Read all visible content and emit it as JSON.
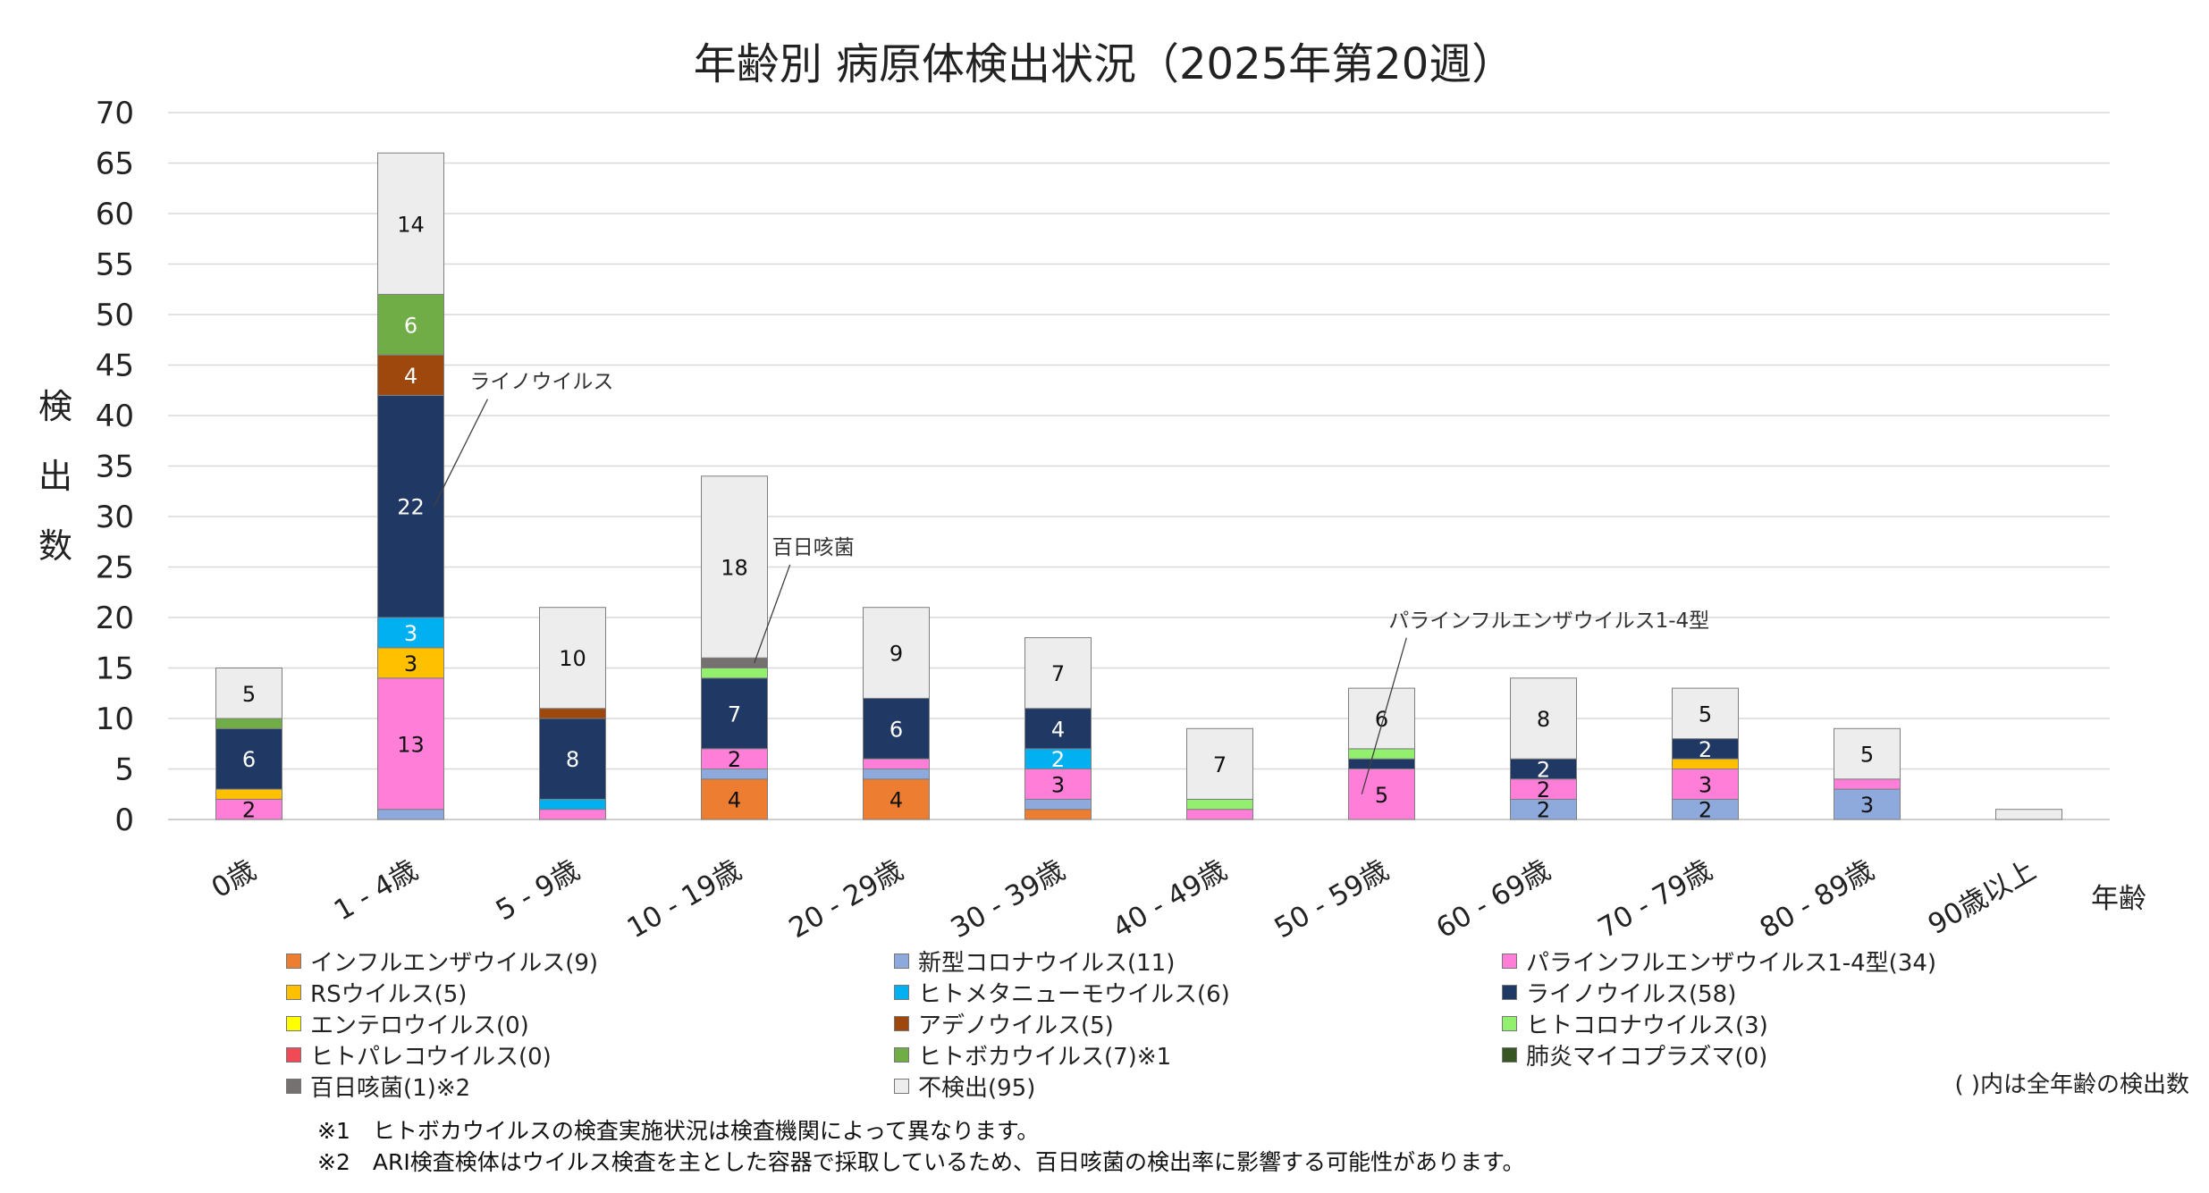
{
  "chart_data": {
    "type": "bar",
    "stacked": true,
    "title": "年齢別 病原体検出状況（2025年第20週）",
    "ylabel": "検出数",
    "xlabel": "年齢",
    "ylim": [
      0,
      70
    ],
    "yticks": [
      0,
      5,
      10,
      15,
      20,
      25,
      30,
      35,
      40,
      45,
      50,
      55,
      60,
      65,
      70
    ],
    "grid": true,
    "legend_position": "bottom",
    "categories": [
      "0歳",
      "1 - 4歳",
      "5 - 9歳",
      "10 - 19歳",
      "20 - 29歳",
      "30 - 39歳",
      "40 - 49歳",
      "50 - 59歳",
      "60 - 69歳",
      "70 - 79歳",
      "80 - 89歳",
      "90歳以上"
    ],
    "series": [
      {
        "name": "インフルエンザウイルス(9)",
        "color": "#ED7D31",
        "values": [
          0,
          0,
          0,
          4,
          4,
          1,
          0,
          0,
          0,
          0,
          0,
          0
        ]
      },
      {
        "name": "新型コロナウイルス(11)",
        "color": "#8EA9DB",
        "values": [
          0,
          1,
          0,
          1,
          1,
          1,
          0,
          0,
          2,
          2,
          3,
          0
        ]
      },
      {
        "name": "パラインフルエンザウイルス1-4型(34)",
        "color": "#FF7FD8",
        "values": [
          2,
          13,
          1,
          2,
          1,
          3,
          1,
          5,
          2,
          3,
          1,
          0
        ]
      },
      {
        "name": "RSウイルス(5)",
        "color": "#FFC000",
        "values": [
          1,
          3,
          0,
          0,
          0,
          0,
          0,
          0,
          0,
          1,
          0,
          0
        ]
      },
      {
        "name": "ヒトメタニューモウイルス(6)",
        "color": "#00B0F0",
        "values": [
          0,
          3,
          1,
          0,
          0,
          2,
          0,
          0,
          0,
          0,
          0,
          0
        ]
      },
      {
        "name": "ライノウイルス(58)",
        "color": "#203864",
        "values": [
          6,
          22,
          8,
          7,
          6,
          4,
          0,
          1,
          2,
          2,
          0,
          0
        ]
      },
      {
        "name": "エンテロウイルス(0)",
        "color": "#FFFF00",
        "values": [
          0,
          0,
          0,
          0,
          0,
          0,
          0,
          0,
          0,
          0,
          0,
          0
        ]
      },
      {
        "name": "アデノウイルス(5)",
        "color": "#9E480E",
        "values": [
          0,
          4,
          1,
          0,
          0,
          0,
          0,
          0,
          0,
          0,
          0,
          0
        ]
      },
      {
        "name": "ヒトコロナウイルス(3)",
        "color": "#92F06E",
        "values": [
          0,
          0,
          0,
          1,
          0,
          0,
          1,
          1,
          0,
          0,
          0,
          0
        ]
      },
      {
        "name": "ヒトパレコウイルス(0)",
        "color": "#F04A57",
        "values": [
          0,
          0,
          0,
          0,
          0,
          0,
          0,
          0,
          0,
          0,
          0,
          0
        ]
      },
      {
        "name": "ヒトボカウイルス(7)※1",
        "color": "#70AD47",
        "values": [
          1,
          6,
          0,
          0,
          0,
          0,
          0,
          0,
          0,
          0,
          0,
          0
        ]
      },
      {
        "name": "肺炎マイコプラズマ(0)",
        "color": "#375623",
        "values": [
          0,
          0,
          0,
          0,
          0,
          0,
          0,
          0,
          0,
          0,
          0,
          0
        ]
      },
      {
        "name": "百日咳菌(1)※2",
        "color": "#767171",
        "values": [
          0,
          0,
          0,
          1,
          0,
          0,
          0,
          0,
          0,
          0,
          0,
          0
        ]
      },
      {
        "name": "不検出(95)",
        "color": "#EDEDED",
        "values": [
          5,
          14,
          10,
          18,
          9,
          7,
          7,
          6,
          8,
          5,
          5,
          1
        ]
      }
    ],
    "data_labels": [
      {
        "category": 0,
        "series": 2,
        "text": "2"
      },
      {
        "category": 0,
        "series": 5,
        "text": "6"
      },
      {
        "category": 0,
        "series": 13,
        "text": "5"
      },
      {
        "category": 1,
        "series": 2,
        "text": "13"
      },
      {
        "category": 1,
        "series": 3,
        "text": "3"
      },
      {
        "category": 1,
        "series": 4,
        "text": "3"
      },
      {
        "category": 1,
        "series": 5,
        "text": "22"
      },
      {
        "category": 1,
        "series": 7,
        "text": "4"
      },
      {
        "category": 1,
        "series": 10,
        "text": "6"
      },
      {
        "category": 1,
        "series": 13,
        "text": "14"
      },
      {
        "category": 2,
        "series": 5,
        "text": "8"
      },
      {
        "category": 2,
        "series": 13,
        "text": "10"
      },
      {
        "category": 3,
        "series": 0,
        "text": "4"
      },
      {
        "category": 3,
        "series": 2,
        "text": "2"
      },
      {
        "category": 3,
        "series": 5,
        "text": "7"
      },
      {
        "category": 3,
        "series": 13,
        "text": "18"
      },
      {
        "category": 4,
        "series": 0,
        "text": "4"
      },
      {
        "category": 4,
        "series": 5,
        "text": "6"
      },
      {
        "category": 4,
        "series": 13,
        "text": "9"
      },
      {
        "category": 5,
        "series": 2,
        "text": "3"
      },
      {
        "category": 5,
        "series": 4,
        "text": "2"
      },
      {
        "category": 5,
        "series": 5,
        "text": "4"
      },
      {
        "category": 5,
        "series": 13,
        "text": "7"
      },
      {
        "category": 6,
        "series": 13,
        "text": "7"
      },
      {
        "category": 7,
        "series": 2,
        "text": "5"
      },
      {
        "category": 7,
        "series": 13,
        "text": "6"
      },
      {
        "category": 8,
        "series": 1,
        "text": "2"
      },
      {
        "category": 8,
        "series": 2,
        "text": "2"
      },
      {
        "category": 8,
        "series": 5,
        "text": "2"
      },
      {
        "category": 8,
        "series": 13,
        "text": "8"
      },
      {
        "category": 9,
        "series": 1,
        "text": "2"
      },
      {
        "category": 9,
        "series": 2,
        "text": "3"
      },
      {
        "category": 9,
        "series": 5,
        "text": "2"
      },
      {
        "category": 9,
        "series": 13,
        "text": "5"
      },
      {
        "category": 10,
        "series": 1,
        "text": "3"
      },
      {
        "category": 10,
        "series": 13,
        "text": "5"
      }
    ],
    "annotations": [
      {
        "text": "ライノウイルス",
        "category": 1,
        "series": 5
      },
      {
        "text": "百日咳菌",
        "category": 3,
        "series": 12
      },
      {
        "text": "パラインフルエンザウイルス1-4型",
        "category": 7,
        "series": 2
      }
    ]
  },
  "legend_note": "( )内は全年齢の検出数",
  "footnotes": [
    "※1　ヒトボカウイルスの検査実施状況は検査機関によって異なります。",
    "※2　ARI検査検体はウイルス検査を主とした容器で採取しているため、百日咳菌の検出率に影響する可能性があります。"
  ]
}
